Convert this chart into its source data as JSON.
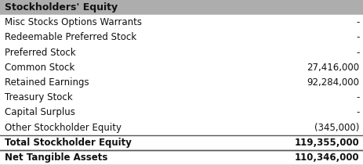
{
  "header": "Stockholders' Equity",
  "rows": [
    {
      "label": "Misc Stocks Options Warrants",
      "value": "-",
      "bold": false,
      "is_total": false
    },
    {
      "label": "Redeemable Preferred Stock",
      "value": "-",
      "bold": false,
      "is_total": false
    },
    {
      "label": "Preferred Stock",
      "value": "-",
      "bold": false,
      "is_total": false
    },
    {
      "label": "Common Stock",
      "value": "27,416,000",
      "bold": false,
      "is_total": false
    },
    {
      "label": "Retained Earnings",
      "value": "92,284,000",
      "bold": false,
      "is_total": false
    },
    {
      "label": "Treasury Stock",
      "value": "-",
      "bold": false,
      "is_total": false
    },
    {
      "label": "Capital Surplus",
      "value": "-",
      "bold": false,
      "is_total": false
    },
    {
      "label": "Other Stockholder Equity",
      "value": "(345,000)",
      "bold": false,
      "is_total": false
    },
    {
      "label": "Total Stockholder Equity",
      "value": "119,355,000",
      "bold": true,
      "is_total": true
    },
    {
      "label": "Net Tangible Assets",
      "value": "110,346,000",
      "bold": true,
      "is_total": true
    }
  ],
  "header_bg": "#adadad",
  "white_bg": "#ffffff",
  "separator_color": "#555555",
  "text_color": "#111111",
  "font_size": 8.5,
  "header_font_size": 9.0,
  "fig_width": 4.64,
  "fig_height": 2.11,
  "dpi": 100
}
